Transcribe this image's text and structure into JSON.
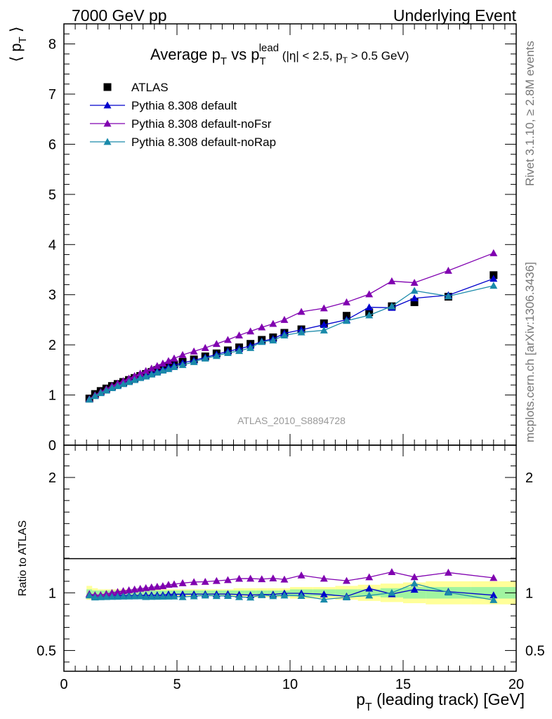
{
  "header": {
    "left": "7000 GeV pp",
    "right": "Underlying Event"
  },
  "side": {
    "rivet": "Rivet 3.1.10, ≥ 2.8M events",
    "mcplots": "mcplots.cern.ch [arXiv:1306.3436]"
  },
  "chart_data": {
    "type": "line",
    "title": "Average p_T vs p_T^lead (|η| < 2.5, p_T > 0.5 GeV)",
    "title_parts": {
      "main": "Average p",
      "sub1": "T",
      "vs": " vs p",
      "sub2": "T",
      "sup2": "lead",
      "cut_a": " (|η| < 2.5, p",
      "cut_sub": "T",
      "cut_b": " > 0.5 GeV)"
    },
    "analysis_label": "ATLAS_2010_S8894728",
    "xlabel": "p_T (leading track) [GeV]",
    "xlabel_parts": {
      "p": "p",
      "sub": "T",
      "rest": " (leading track) [GeV]"
    },
    "ylabel": "⟨ p_T ⟩",
    "ylabel_parts": {
      "open": "⟨ p",
      "sub": "T",
      "close": " ⟩"
    },
    "ratio_ylabel": "Ratio to ATLAS",
    "xlim": [
      0,
      20
    ],
    "ylim": [
      0,
      8.4
    ],
    "ratio_ylim": [
      0.32,
      2.28
    ],
    "x_ticks": [
      "0",
      "5",
      "10",
      "15",
      "20"
    ],
    "y_ticks": [
      "0",
      "1",
      "2",
      "3",
      "4",
      "5",
      "6",
      "7",
      "8"
    ],
    "ratio_ticks": [
      "0.5",
      "1",
      "2"
    ],
    "legend_position": "top-left",
    "colors": {
      "ATLAS": "#000000",
      "default": "#0000cc",
      "noFsr": "#8000b0",
      "noRap": "#1a8aaa",
      "band_inner": "#a0f4a0",
      "band_outer": "#ffff99"
    },
    "x": [
      1.125,
      1.375,
      1.625,
      1.875,
      2.125,
      2.375,
      2.625,
      2.875,
      3.125,
      3.375,
      3.625,
      3.875,
      4.125,
      4.375,
      4.625,
      4.875,
      5.25,
      5.75,
      6.25,
      6.75,
      7.25,
      7.75,
      8.25,
      8.75,
      9.25,
      9.75,
      10.5,
      11.5,
      12.5,
      13.5,
      14.5,
      15.5,
      17.0,
      19.0
    ],
    "series": [
      {
        "name": "ATLAS",
        "marker": "square",
        "values": [
          0.93,
          1.02,
          1.08,
          1.13,
          1.18,
          1.22,
          1.26,
          1.3,
          1.34,
          1.38,
          1.42,
          1.46,
          1.5,
          1.54,
          1.57,
          1.61,
          1.66,
          1.71,
          1.77,
          1.83,
          1.89,
          1.95,
          2.02,
          2.1,
          2.15,
          2.24,
          2.31,
          2.43,
          2.58,
          2.65,
          2.77,
          2.85,
          2.96,
          3.39
        ]
      },
      {
        "name": "Pythia 8.308 default",
        "marker": "triangle",
        "values": [
          0.92,
          0.99,
          1.05,
          1.1,
          1.15,
          1.19,
          1.23,
          1.27,
          1.31,
          1.35,
          1.39,
          1.43,
          1.47,
          1.51,
          1.55,
          1.59,
          1.64,
          1.69,
          1.75,
          1.81,
          1.87,
          1.92,
          1.98,
          2.07,
          2.12,
          2.23,
          2.3,
          2.4,
          2.5,
          2.75,
          2.74,
          2.93,
          2.99,
          3.32
        ]
      },
      {
        "name": "Pythia 8.308 default-noFsr",
        "marker": "triangle",
        "values": [
          0.92,
          1.0,
          1.06,
          1.12,
          1.18,
          1.23,
          1.28,
          1.33,
          1.38,
          1.43,
          1.48,
          1.53,
          1.58,
          1.63,
          1.68,
          1.73,
          1.8,
          1.87,
          1.94,
          2.02,
          2.1,
          2.19,
          2.27,
          2.35,
          2.42,
          2.5,
          2.66,
          2.73,
          2.85,
          3.01,
          3.27,
          3.24,
          3.48,
          3.83
        ]
      },
      {
        "name": "Pythia 8.308 default-noRap",
        "marker": "triangle",
        "values": [
          0.91,
          0.98,
          1.04,
          1.09,
          1.14,
          1.18,
          1.22,
          1.26,
          1.3,
          1.34,
          1.37,
          1.41,
          1.45,
          1.49,
          1.52,
          1.56,
          1.6,
          1.66,
          1.73,
          1.78,
          1.84,
          1.88,
          1.94,
          2.06,
          2.09,
          2.19,
          2.25,
          2.29,
          2.48,
          2.59,
          2.77,
          3.08,
          2.97,
          3.18
        ]
      }
    ],
    "ratio_band": {
      "x_edges": [
        1.0,
        1.25,
        1.5,
        1.75,
        2.0,
        2.25,
        2.5,
        2.75,
        3.0,
        3.25,
        3.5,
        3.75,
        4.0,
        4.25,
        4.5,
        4.75,
        5.0,
        5.5,
        6.0,
        6.5,
        7.0,
        7.5,
        8.0,
        8.5,
        9.0,
        9.5,
        10.0,
        11.0,
        12.0,
        13.0,
        14.0,
        15.0,
        16.0,
        18.0,
        20.0
      ],
      "inner": [
        0.03,
        0.02,
        0.02,
        0.02,
        0.02,
        0.02,
        0.02,
        0.02,
        0.02,
        0.02,
        0.02,
        0.02,
        0.02,
        0.02,
        0.02,
        0.02,
        0.02,
        0.02,
        0.02,
        0.02,
        0.02,
        0.02,
        0.02,
        0.02,
        0.02,
        0.02,
        0.03,
        0.03,
        0.03,
        0.03,
        0.04,
        0.05,
        0.05,
        0.05
      ],
      "outer": [
        0.06,
        0.04,
        0.03,
        0.03,
        0.03,
        0.03,
        0.03,
        0.03,
        0.03,
        0.03,
        0.03,
        0.03,
        0.03,
        0.03,
        0.03,
        0.03,
        0.03,
        0.03,
        0.03,
        0.03,
        0.03,
        0.04,
        0.04,
        0.04,
        0.04,
        0.04,
        0.05,
        0.05,
        0.06,
        0.07,
        0.08,
        0.09,
        0.1,
        0.1
      ]
    }
  }
}
